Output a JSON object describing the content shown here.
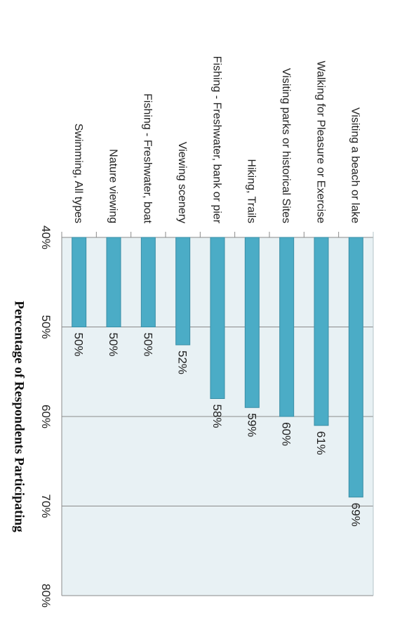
{
  "chart_data": {
    "type": "bar",
    "orientation": "horizontal-rotated",
    "title": "",
    "ylabel": "Percentage of Respondents Participating",
    "xlabel": "",
    "ylim": [
      40,
      80
    ],
    "yticks": [
      40,
      50,
      60,
      70,
      80
    ],
    "ytick_labels": [
      "40%",
      "50%",
      "60%",
      "70%",
      "80%"
    ],
    "grid": true,
    "categories": [
      "Visiting a beach or lake",
      "Walking for Pleasure or Exercise",
      "Visiting parks or historical Sites",
      "Hiking, Trails",
      "Fishing - Freshwater, bank or pier",
      "Viewing scenery",
      "Fishing - Freshwater, boat",
      "Nature viewing",
      "Swimming, All types"
    ],
    "values": [
      69,
      61,
      60,
      59,
      58,
      52,
      50,
      50,
      50
    ],
    "value_labels": [
      "69%",
      "61%",
      "60%",
      "59%",
      "58%",
      "52%",
      "50%",
      "50%",
      "50%"
    ],
    "colors": {
      "bar": "#4bacc6",
      "bar_edge": "#3a8ea6",
      "plot_bg": "#e8f1f4",
      "grid": "#8a8a8a"
    }
  }
}
